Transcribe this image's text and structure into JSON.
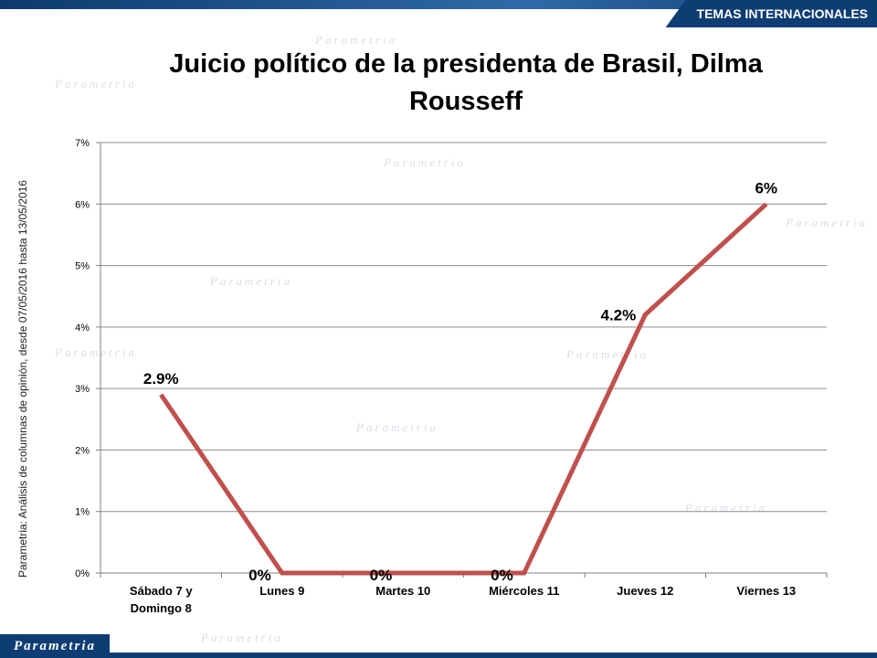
{
  "header": {
    "section_label": "TEMAS INTERNACIONALES"
  },
  "brand": {
    "logo_text": "Parametria",
    "watermark_text": "Parametria"
  },
  "side_note": "Parametria: Análisis de columnas de opinión, desde 07/05/2016 hasta  13/05/2016",
  "chart_data": {
    "type": "line",
    "title": "Juicio político de la presidenta de Brasil, Dilma Rousseff",
    "categories": [
      [
        "Sábado 7 y",
        "Domingo 8"
      ],
      [
        "Lunes 9"
      ],
      [
        "Martes 10"
      ],
      [
        "Miércoles 11"
      ],
      [
        "Jueves 12"
      ],
      [
        "Viernes 13"
      ]
    ],
    "values": [
      2.9,
      0,
      0,
      0,
      4.2,
      6
    ],
    "data_labels": [
      "2.9%",
      "0%",
      "0%",
      "0%",
      "4.2%",
      "6%"
    ],
    "y_ticks": [
      "0%",
      "1%",
      "2%",
      "3%",
      "4%",
      "5%",
      "6%",
      "7%"
    ],
    "ylim": [
      0,
      7
    ],
    "grid": true,
    "colors": {
      "line": "#c0504d",
      "grid": "#8c8c8c",
      "axis": "#7f7f7f"
    }
  }
}
